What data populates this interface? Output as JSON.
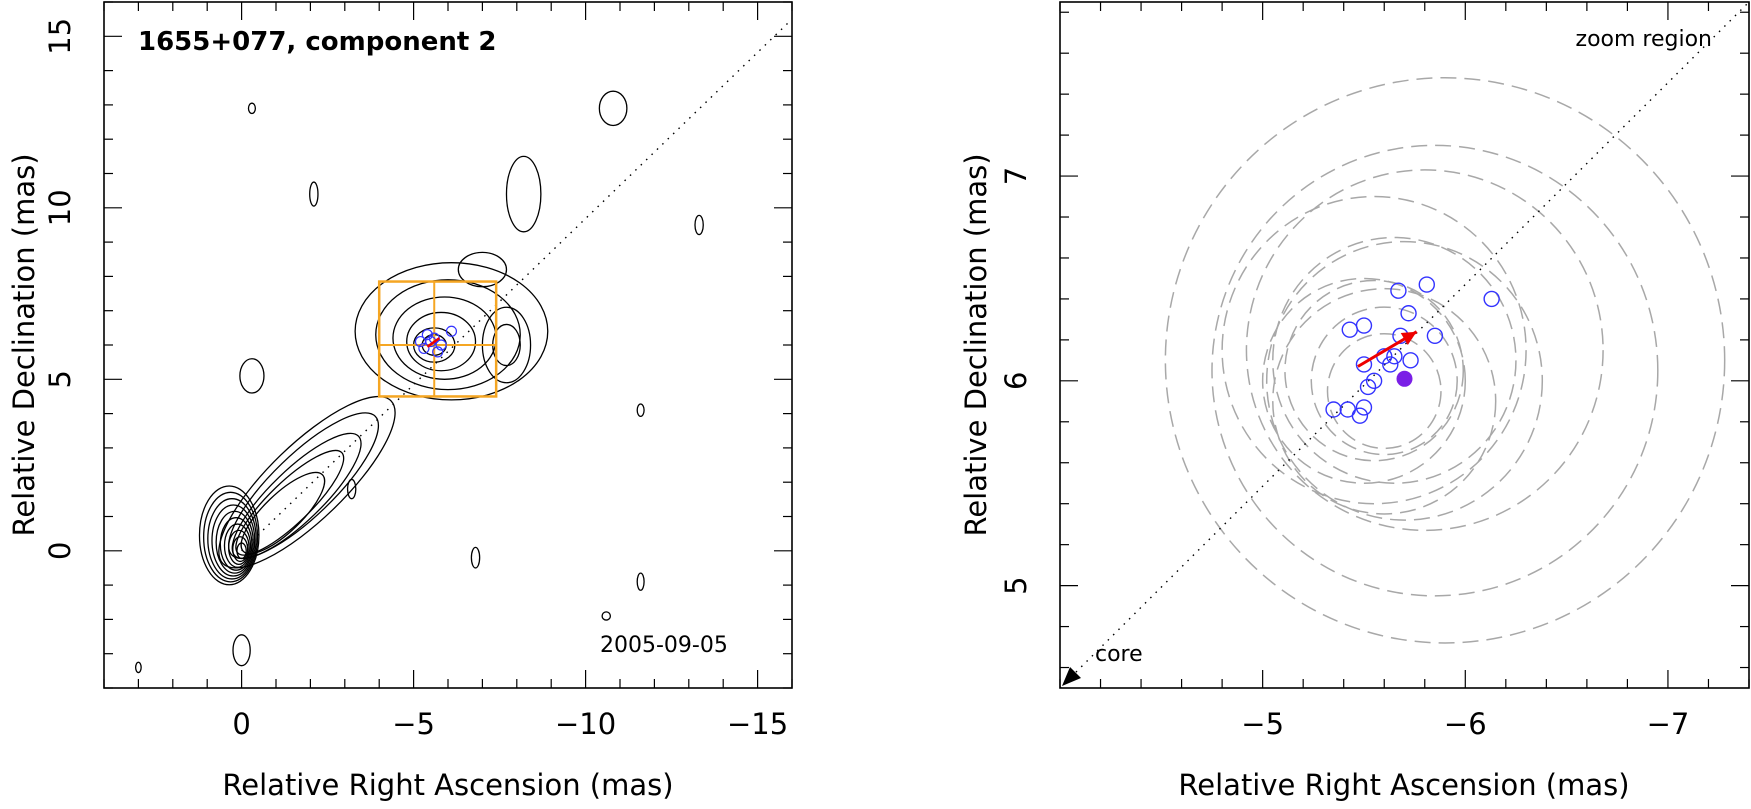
{
  "chart_data": [
    {
      "type": "scatter",
      "panel": "left",
      "title": "1655+077, component 2",
      "date": "2005-09-05",
      "xlabel": "Relative Right Ascension (mas)",
      "ylabel": "Relative Declination (mas)",
      "xlim": [
        4,
        -16
      ],
      "ylim": [
        -4,
        16
      ],
      "xticks": [
        0,
        -5,
        -10,
        -15
      ],
      "xtick_labels": [
        "0",
        "−5",
        "−10",
        "−15"
      ],
      "yticks": [
        0,
        5,
        10,
        15
      ],
      "ytick_labels": [
        "0",
        "5",
        "10",
        "15"
      ],
      "contour_center": [
        0,
        0
      ],
      "jet_axis": {
        "from": [
          0,
          0
        ],
        "to": [
          -16,
          15.5
        ],
        "style": "dotted"
      },
      "zoom_box": {
        "x": [
          -4,
          -7.4
        ],
        "y": [
          4.5,
          7.85
        ],
        "crosshair": [
          -5.6,
          6.0
        ],
        "color": "#f5a623"
      },
      "component_positions": [
        {
          "x": -5.5,
          "y": 6.1
        },
        {
          "x": -5.3,
          "y": 5.9
        },
        {
          "x": -5.6,
          "y": 6.2
        },
        {
          "x": -5.8,
          "y": 6.0
        },
        {
          "x": -5.4,
          "y": 6.3
        },
        {
          "x": -5.7,
          "y": 5.8
        },
        {
          "x": -6.1,
          "y": 6.4
        },
        {
          "x": -5.2,
          "y": 6.1
        }
      ],
      "colors": {
        "points": "#3333ff",
        "zoom_box": "#f5a623",
        "arrow": "#ee0000",
        "contours": "#000000"
      }
    },
    {
      "type": "scatter",
      "panel": "right",
      "xlabel": "Relative Right Ascension (mas)",
      "ylabel": "Relative Declination (mas)",
      "annotation_zoom": "zoom region",
      "annotation_core": "core",
      "xlim": [
        -4,
        -7.4
      ],
      "ylim": [
        4.5,
        7.85
      ],
      "xticks": [
        -5,
        -6,
        -7
      ],
      "xtick_labels": [
        "−5",
        "−6",
        "−7"
      ],
      "yticks": [
        5,
        6,
        7
      ],
      "ytick_labels": [
        "5",
        "6",
        "7"
      ],
      "component_positions": [
        {
          "x": -5.35,
          "y": 5.86
        },
        {
          "x": -5.42,
          "y": 5.86
        },
        {
          "x": -5.48,
          "y": 5.83
        },
        {
          "x": -5.5,
          "y": 5.87
        },
        {
          "x": -5.52,
          "y": 5.97
        },
        {
          "x": -5.55,
          "y": 6.0
        },
        {
          "x": -5.5,
          "y": 6.08
        },
        {
          "x": -5.6,
          "y": 6.12
        },
        {
          "x": -5.63,
          "y": 6.08
        },
        {
          "x": -5.65,
          "y": 6.12
        },
        {
          "x": -5.68,
          "y": 6.22
        },
        {
          "x": -5.73,
          "y": 6.1
        },
        {
          "x": -5.85,
          "y": 6.22
        },
        {
          "x": -5.72,
          "y": 6.33
        },
        {
          "x": -5.67,
          "y": 6.44
        },
        {
          "x": -5.81,
          "y": 6.47
        },
        {
          "x": -5.43,
          "y": 6.25
        },
        {
          "x": -5.5,
          "y": 6.27
        },
        {
          "x": -6.13,
          "y": 6.4
        }
      ],
      "mean_position": {
        "x": -5.7,
        "y": 6.01
      },
      "motion_vector": {
        "from": [
          -5.47,
          6.07
        ],
        "to": [
          -5.76,
          6.24
        ]
      },
      "uncertainty_circles": [
        {
          "x": -5.6,
          "y": 5.95,
          "r": 0.28
        },
        {
          "x": -5.6,
          "y": 6.0,
          "r": 0.36
        },
        {
          "x": -5.55,
          "y": 6.05,
          "r": 0.44
        },
        {
          "x": -5.5,
          "y": 6.0,
          "r": 0.5
        },
        {
          "x": -5.6,
          "y": 5.9,
          "r": 0.55
        },
        {
          "x": -5.65,
          "y": 6.1,
          "r": 0.6
        },
        {
          "x": -5.7,
          "y": 6.0,
          "r": 0.68
        },
        {
          "x": -5.55,
          "y": 6.15,
          "r": 0.75
        },
        {
          "x": -5.8,
          "y": 6.15,
          "r": 0.88
        },
        {
          "x": -5.85,
          "y": 6.05,
          "r": 1.1
        },
        {
          "x": -5.9,
          "y": 6.1,
          "r": 1.38
        }
      ],
      "jet_axis": {
        "from": [
          -4.0,
          4.5
        ],
        "to": [
          -7.4,
          7.85
        ],
        "style": "dotted"
      },
      "colors": {
        "points": "#3333ff",
        "mean": "#7a1fe6",
        "arrow": "#ee0000",
        "circles": "#a8a8a8"
      }
    }
  ]
}
